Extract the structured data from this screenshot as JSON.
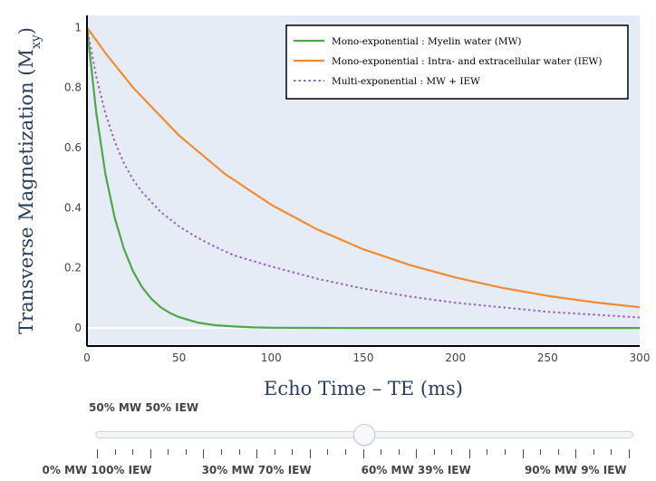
{
  "chart_data": {
    "type": "line",
    "xlabel": "Echo Time – TE (ms)",
    "ylabel_main": "Transverse Magnetization (M",
    "ylabel_sub": "xy",
    "ylabel_close": ")",
    "xlim": [
      0,
      300
    ],
    "ylim": [
      -0.06,
      1.04
    ],
    "xticks": [
      0,
      50,
      100,
      150,
      200,
      250,
      300
    ],
    "yticks": [
      0,
      0.2,
      0.4,
      0.6,
      0.8,
      1
    ],
    "legend_position": "top-right",
    "plot_background": "#e5ecf6",
    "series": [
      {
        "name": "Mono-exponential : Myelin water (MW)",
        "color": "#4ea748",
        "dash": "solid",
        "x": [
          0,
          5,
          10,
          15,
          20,
          25,
          30,
          35,
          40,
          45,
          50,
          60,
          70,
          80,
          90,
          100,
          125,
          150,
          200,
          250,
          300
        ],
        "y": [
          1.0,
          0.717,
          0.513,
          0.368,
          0.264,
          0.189,
          0.135,
          0.097,
          0.069,
          0.05,
          0.036,
          0.018,
          0.009,
          0.005,
          0.002,
          0.001,
          0.0003,
          0.0,
          0.0,
          0.0,
          0.0
        ]
      },
      {
        "name": "Mono-exponential : Intra- and extracellular water (IEW)",
        "color": "#f28a30",
        "dash": "solid",
        "x": [
          0,
          10,
          25,
          50,
          75,
          100,
          125,
          150,
          175,
          200,
          225,
          250,
          275,
          300
        ],
        "y": [
          1.0,
          0.915,
          0.8,
          0.64,
          0.512,
          0.41,
          0.328,
          0.262,
          0.21,
          0.168,
          0.134,
          0.107,
          0.086,
          0.069
        ]
      },
      {
        "name": "Multi-exponential : MW + IEW",
        "color": "#9467bd",
        "dash": "dot",
        "x": [
          0,
          5,
          10,
          15,
          20,
          25,
          30,
          40,
          50,
          60,
          70,
          80,
          100,
          125,
          150,
          175,
          200,
          250,
          300
        ],
        "y": [
          1.0,
          0.837,
          0.714,
          0.621,
          0.549,
          0.494,
          0.452,
          0.386,
          0.338,
          0.3,
          0.269,
          0.241,
          0.205,
          0.164,
          0.131,
          0.105,
          0.084,
          0.054,
          0.035
        ]
      }
    ]
  },
  "slider": {
    "current_label": "50% MW 50% IEW",
    "tick_labels": [
      "0% MW 100% IEW",
      "30% MW 70% IEW",
      "60% MW 39% IEW",
      "90% MW 9% IEW"
    ],
    "tick_count": 31,
    "position_fraction": 0.5
  }
}
